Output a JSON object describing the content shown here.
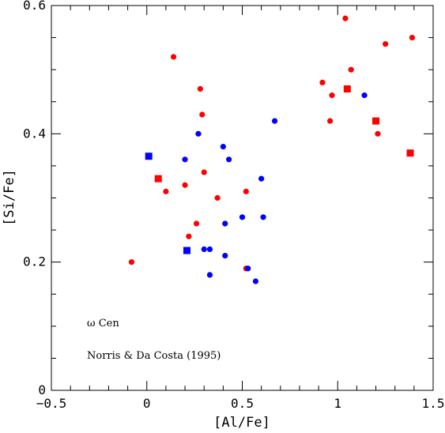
{
  "chart_data": {
    "type": "scatter",
    "xlabel": "[Al/Fe]",
    "ylabel": "[Si/Fe]",
    "xlim": [
      -0.5,
      1.5
    ],
    "ylim": [
      0,
      0.6
    ],
    "x_ticks": [
      -0.5,
      0,
      0.5,
      1,
      1.5
    ],
    "x_tick_labels": [
      "−0.5",
      "0",
      "0.5",
      "1",
      "1.5"
    ],
    "y_ticks": [
      0,
      0.2,
      0.4,
      0.6
    ],
    "y_tick_labels": [
      "0",
      "0.2",
      "0.4",
      "0.6"
    ],
    "x_minor_step": 0.1,
    "y_minor_step": 0.05,
    "grid": false,
    "annotations": [
      "ω Cen",
      "Norris & Da Costa (1995)"
    ],
    "series": [
      {
        "color": "#ff0000",
        "marker": "circle",
        "points": [
          [
            -0.08,
            0.2
          ],
          [
            0.14,
            0.52
          ],
          [
            0.1,
            0.31
          ],
          [
            0.2,
            0.32
          ],
          [
            0.22,
            0.24
          ],
          [
            0.26,
            0.26
          ],
          [
            0.28,
            0.47
          ],
          [
            0.29,
            0.43
          ],
          [
            0.3,
            0.34
          ],
          [
            0.37,
            0.3
          ],
          [
            0.52,
            0.31
          ],
          [
            0.52,
            0.19
          ],
          [
            0.92,
            0.48
          ],
          [
            0.96,
            0.42
          ],
          [
            0.97,
            0.46
          ],
          [
            1.04,
            0.58
          ],
          [
            1.07,
            0.5
          ],
          [
            1.21,
            0.4
          ],
          [
            1.25,
            0.54
          ],
          [
            1.39,
            0.55
          ]
        ]
      },
      {
        "color": "#0000ff",
        "marker": "circle",
        "points": [
          [
            0.2,
            0.36
          ],
          [
            0.27,
            0.4
          ],
          [
            0.3,
            0.22
          ],
          [
            0.33,
            0.22
          ],
          [
            0.33,
            0.18
          ],
          [
            0.4,
            0.38
          ],
          [
            0.41,
            0.26
          ],
          [
            0.41,
            0.21
          ],
          [
            0.43,
            0.36
          ],
          [
            0.5,
            0.27
          ],
          [
            0.53,
            0.19
          ],
          [
            0.57,
            0.17
          ],
          [
            0.6,
            0.33
          ],
          [
            0.61,
            0.27
          ],
          [
            0.67,
            0.42
          ],
          [
            1.14,
            0.46
          ]
        ]
      },
      {
        "color": "#ff0000",
        "marker": "square",
        "points": [
          [
            0.06,
            0.33
          ],
          [
            1.05,
            0.47
          ],
          [
            1.2,
            0.42
          ],
          [
            1.38,
            0.37
          ]
        ]
      },
      {
        "color": "#0000ff",
        "marker": "square",
        "points": [
          [
            0.01,
            0.365
          ],
          [
            0.21,
            0.218
          ]
        ]
      }
    ]
  }
}
